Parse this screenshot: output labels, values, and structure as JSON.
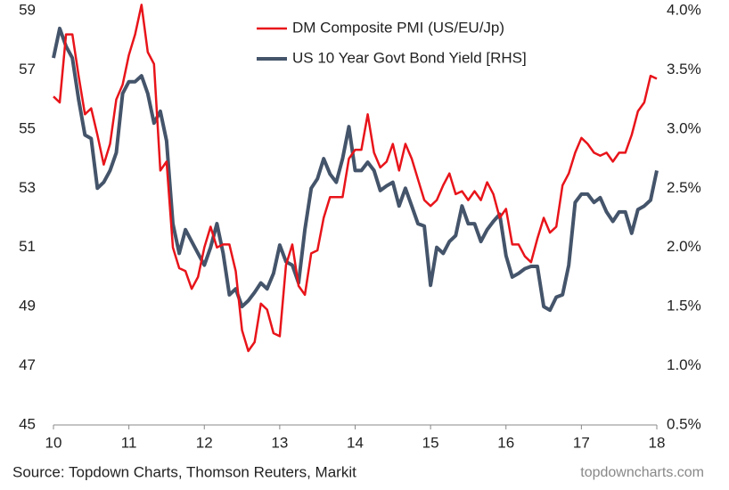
{
  "chart_data": {
    "type": "line",
    "x": [
      10,
      10.083,
      10.167,
      10.25,
      10.333,
      10.417,
      10.5,
      10.583,
      10.667,
      10.75,
      10.833,
      10.917,
      11,
      11.083,
      11.167,
      11.25,
      11.333,
      11.417,
      11.5,
      11.583,
      11.667,
      11.75,
      11.833,
      11.917,
      12,
      12.083,
      12.167,
      12.25,
      12.333,
      12.417,
      12.5,
      12.583,
      12.667,
      12.75,
      12.833,
      12.917,
      13,
      13.083,
      13.167,
      13.25,
      13.333,
      13.417,
      13.5,
      13.583,
      13.667,
      13.75,
      13.833,
      13.917,
      14,
      14.083,
      14.167,
      14.25,
      14.333,
      14.417,
      14.5,
      14.583,
      14.667,
      14.75,
      14.833,
      14.917,
      15,
      15.083,
      15.167,
      15.25,
      15.333,
      15.417,
      15.5,
      15.583,
      15.667,
      15.75,
      15.833,
      15.917,
      16,
      16.083,
      16.167,
      16.25,
      16.333,
      16.417,
      16.5,
      16.583,
      16.667,
      16.75,
      16.833,
      16.917,
      17,
      17.083,
      17.167,
      17.25,
      17.333,
      17.417,
      17.5,
      17.583,
      17.667,
      17.75,
      17.833,
      17.917,
      18
    ],
    "series": [
      {
        "name": "DM Composite PMI (US/EU/Jp)",
        "color": "#e8141a",
        "axis": "y",
        "values": [
          56.1,
          55.9,
          58.2,
          58.2,
          56.8,
          55.5,
          55.7,
          54.8,
          53.8,
          54.5,
          56.0,
          56.5,
          57.5,
          58.2,
          59.2,
          57.6,
          57.2,
          53.6,
          53.9,
          51.0,
          50.3,
          50.2,
          49.6,
          50.0,
          51.0,
          51.7,
          51.0,
          51.1,
          51.1,
          50.2,
          48.2,
          47.5,
          47.8,
          49.1,
          48.9,
          48.1,
          48.0,
          50.4,
          51.1,
          49.7,
          49.4,
          50.8,
          50.9,
          52.0,
          52.7,
          52.7,
          52.7,
          54.0,
          54.3,
          54.3,
          55.5,
          54.2,
          53.7,
          53.9,
          54.5,
          53.6,
          54.5,
          54.0,
          53.3,
          52.6,
          52.4,
          52.6,
          53.1,
          53.5,
          52.8,
          52.9,
          52.6,
          52.9,
          52.6,
          53.2,
          52.8,
          52.0,
          52.3,
          51.1,
          51.1,
          50.7,
          50.5,
          51.3,
          52.0,
          51.5,
          51.7,
          53.1,
          53.5,
          54.2,
          54.7,
          54.5,
          54.2,
          54.1,
          54.2,
          53.9,
          54.2,
          54.2,
          54.8,
          55.6,
          55.9,
          56.8,
          56.7
        ]
      },
      {
        "name": "US 10 Year Govt Bond Yield [RHS]",
        "color": "#44546a",
        "axis": "y2",
        "values": [
          3.6,
          3.85,
          3.7,
          3.6,
          3.25,
          2.95,
          2.92,
          2.5,
          2.55,
          2.65,
          2.8,
          3.3,
          3.4,
          3.4,
          3.45,
          3.3,
          3.05,
          3.15,
          2.9,
          2.2,
          1.95,
          2.15,
          2.05,
          1.95,
          1.85,
          2.0,
          2.2,
          1.95,
          1.6,
          1.65,
          1.5,
          1.55,
          1.62,
          1.7,
          1.65,
          1.78,
          2.02,
          1.88,
          1.85,
          1.7,
          2.15,
          2.5,
          2.58,
          2.75,
          2.62,
          2.55,
          2.75,
          3.02,
          2.65,
          2.65,
          2.72,
          2.65,
          2.48,
          2.52,
          2.55,
          2.35,
          2.5,
          2.35,
          2.2,
          2.18,
          1.68,
          2.0,
          1.95,
          2.05,
          2.1,
          2.35,
          2.2,
          2.2,
          2.05,
          2.15,
          2.22,
          2.28,
          1.93,
          1.75,
          1.78,
          1.82,
          1.84,
          1.84,
          1.5,
          1.47,
          1.58,
          1.6,
          1.85,
          2.38,
          2.45,
          2.45,
          2.38,
          2.42,
          2.3,
          2.22,
          2.3,
          2.3,
          2.12,
          2.32,
          2.35,
          2.4,
          2.65
        ]
      }
    ],
    "xlim": [
      10,
      18
    ],
    "xticks": [
      10,
      11,
      12,
      13,
      14,
      15,
      16,
      17,
      18
    ],
    "ylim": [
      45,
      59
    ],
    "yticks": [
      45,
      47,
      49,
      51,
      53,
      55,
      57,
      59
    ],
    "y2lim": [
      0.5,
      4.0
    ],
    "y2ticks": [
      {
        "value": 0.5,
        "label": "0.5%"
      },
      {
        "value": 1.0,
        "label": "1.0%"
      },
      {
        "value": 1.5,
        "label": "1.5%"
      },
      {
        "value": 2.0,
        "label": "2.0%"
      },
      {
        "value": 2.5,
        "label": "2.5%"
      },
      {
        "value": 3.0,
        "label": "3.0%"
      },
      {
        "value": 3.5,
        "label": "3.5%"
      },
      {
        "value": 4.0,
        "label": "4.0%"
      }
    ],
    "legend": "upper center",
    "source": "Source: Topdown Charts, Thomson Reuters, Markit",
    "website": "topdowncharts.com"
  }
}
